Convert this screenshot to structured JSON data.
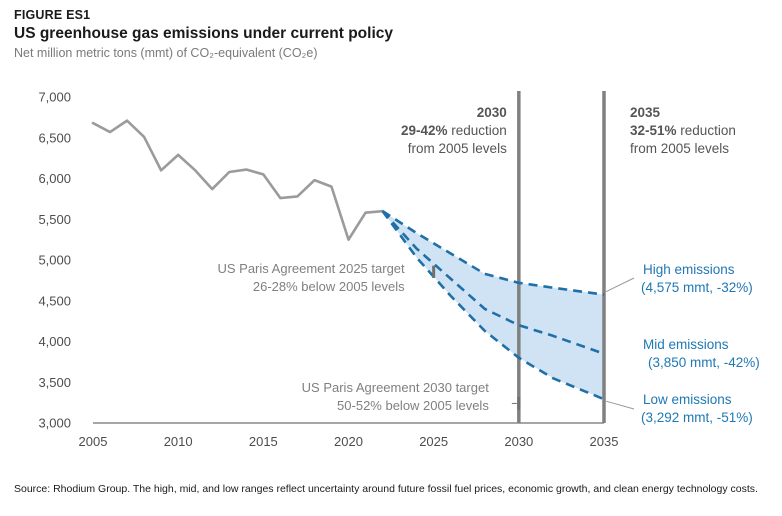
{
  "header": {
    "figure_label": "FIGURE ES1",
    "title": "US greenhouse gas emissions under current policy",
    "subtitle": "Net million metric tons (mmt) of CO₂-equivalent (CO₂e)"
  },
  "source": "Source: Rhodium Group. The high, mid, and low ranges reflect uncertainty around future fossil fuel prices, economic growth, and clean energy technology costs.",
  "chart_data": {
    "type": "line",
    "xlim": [
      2005,
      2035
    ],
    "ylim": [
      3000,
      7000
    ],
    "x_ticks": [
      "2005",
      "2010",
      "2015",
      "2020",
      "2025",
      "2030",
      "2035"
    ],
    "y_ticks": [
      "3,000",
      "3,500",
      "4,000",
      "4,500",
      "5,000",
      "5,500",
      "6,000",
      "6,500",
      "7,000"
    ],
    "grid": false,
    "colors": {
      "historical": "#9b9b9b",
      "projection": "#1f6fa8",
      "band": "#cfe3f5",
      "marker": "#808080",
      "text_blue": "#1f78b4"
    },
    "series": [
      {
        "key": "historical",
        "x": [
          2005,
          2006,
          2007,
          2008,
          2009,
          2010,
          2011,
          2012,
          2013,
          2014,
          2015,
          2016,
          2017,
          2018,
          2019,
          2020,
          2021,
          2022
        ],
        "values": [
          6680,
          6570,
          6710,
          6510,
          6100,
          6290,
          6100,
          5870,
          6080,
          6110,
          6050,
          5760,
          5780,
          5980,
          5900,
          5250,
          5580,
          5600
        ]
      },
      {
        "key": "high",
        "x": [
          2022,
          2024,
          2026,
          2028,
          2030,
          2032,
          2035
        ],
        "values": [
          5600,
          5330,
          5080,
          4830,
          4720,
          4660,
          4575
        ]
      },
      {
        "key": "mid",
        "x": [
          2022,
          2024,
          2026,
          2028,
          2030,
          2032,
          2035
        ],
        "values": [
          5600,
          5140,
          4770,
          4400,
          4200,
          4070,
          3850
        ]
      },
      {
        "key": "low",
        "x": [
          2022,
          2024,
          2026,
          2028,
          2030,
          2032,
          2035
        ],
        "values": [
          5600,
          5030,
          4560,
          4130,
          3800,
          3550,
          3292
        ]
      }
    ],
    "markers": [
      {
        "key": "m2030",
        "x": 2030,
        "heading": "2030",
        "line1_bold": "29-42%",
        "line1_rest": " reduction",
        "line2": "from 2005 levels"
      },
      {
        "key": "m2035",
        "x": 2035,
        "heading": "2035",
        "line1_bold": "32-51%",
        "line1_rest": " reduction",
        "line2": "from 2005 levels"
      }
    ],
    "targets": [
      {
        "key": "t2025",
        "x": 2025,
        "y_range": [
          4780,
          4930
        ],
        "line1": "US Paris Agreement 2025 target",
        "line2": "26-28% below 2005 levels"
      },
      {
        "key": "t2030",
        "x": 2030,
        "y_range": [
          3160,
          3320
        ],
        "line1": "US Paris Agreement 2030 target",
        "line2": "50-52% below 2005 levels"
      }
    ],
    "labels": [
      {
        "key": "high",
        "line1": "High emissions",
        "line2": "(4,575 mmt, -32%)"
      },
      {
        "key": "mid",
        "line1": "Mid emissions",
        "line2": "(3,850 mmt, -42%)"
      },
      {
        "key": "low",
        "line1": "Low emissions",
        "line2": "(3,292 mmt, -51%)"
      }
    ]
  }
}
